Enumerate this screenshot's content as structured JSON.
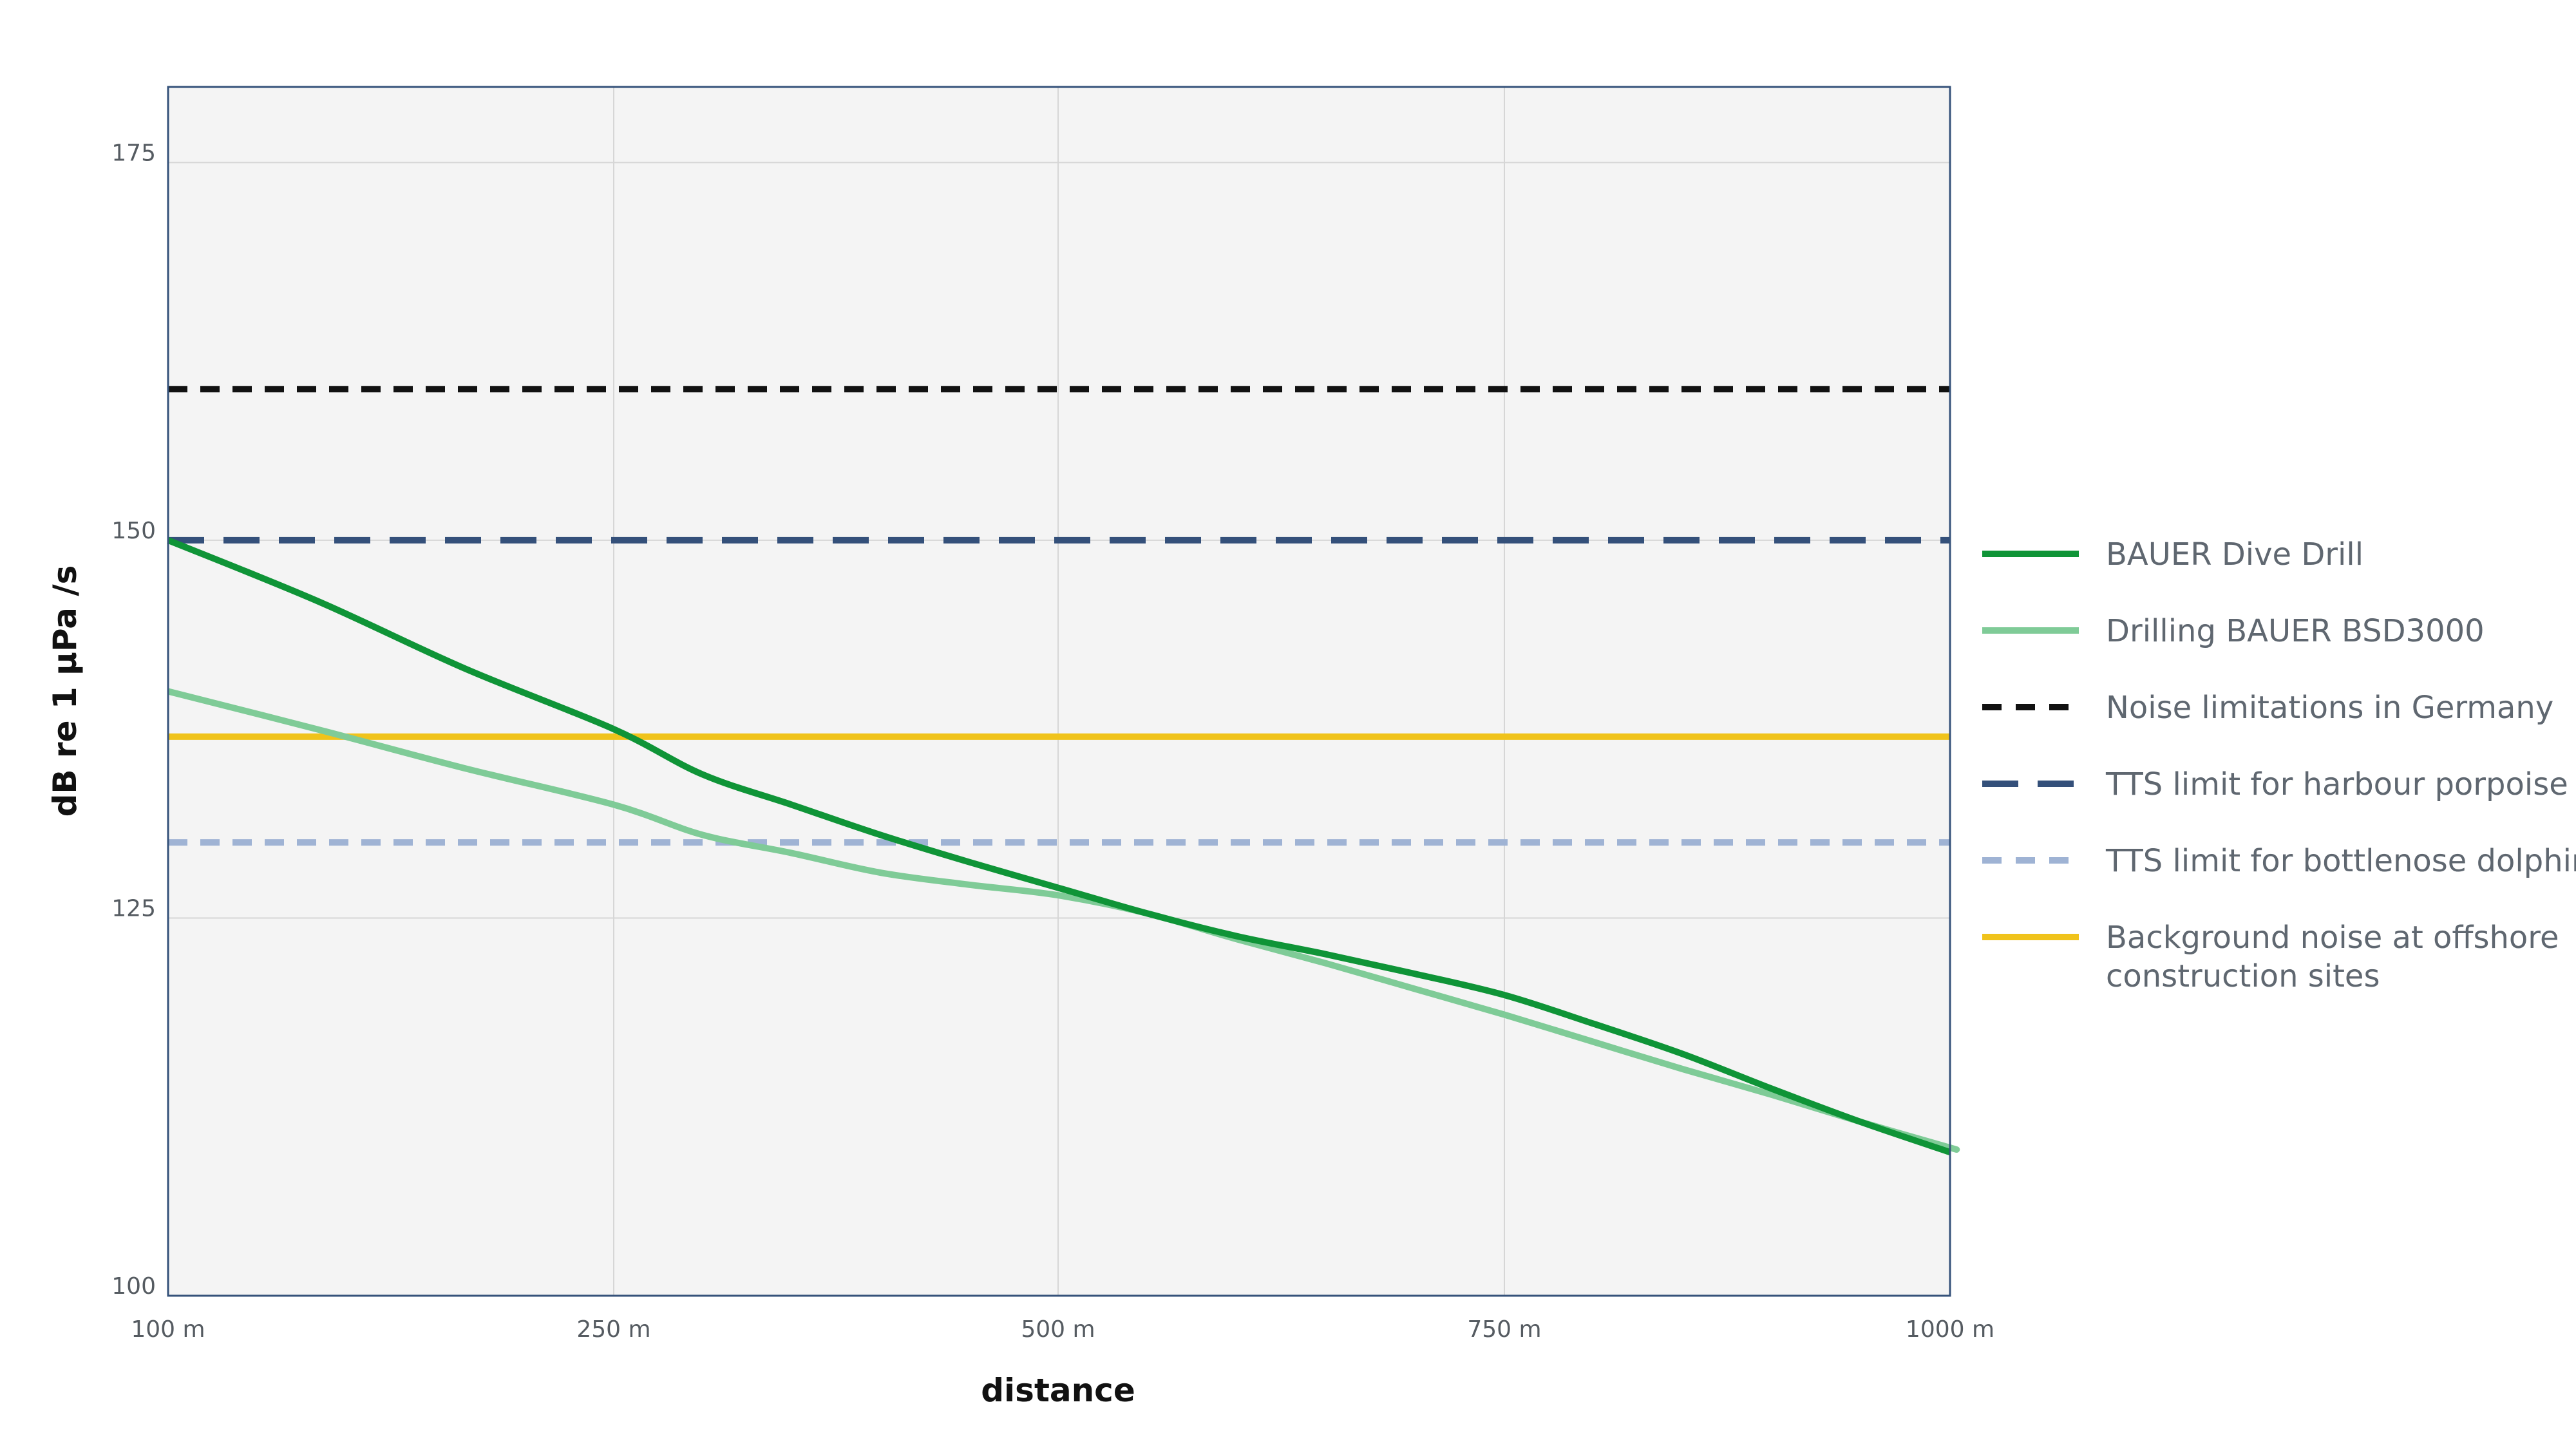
{
  "colors": {
    "plot_background": "#f4f4f4",
    "frame": "#35527a",
    "grid": "#d6d6d6",
    "dive_drill": "#0f9437",
    "bsd3000": "#7fcb97",
    "germany_limit": "#111111",
    "harbour_porpoise": "#34507a",
    "bottlenose_dolphine": "#9fb3d4",
    "background_noise": "#f0c31b"
  },
  "chart_data": {
    "type": "line",
    "title": "",
    "xlabel": "distance",
    "ylabel": "dB re 1 µPa /s",
    "x_ticks": [
      {
        "value": 100,
        "label": "100 m"
      },
      {
        "value": 250,
        "label": "250 m"
      },
      {
        "value": 500,
        "label": "500 m"
      },
      {
        "value": 750,
        "label": "750 m"
      },
      {
        "value": 1000,
        "label": "1000 m"
      }
    ],
    "y_ticks": [
      {
        "value": 100,
        "label": "100"
      },
      {
        "value": 125,
        "label": "125"
      },
      {
        "value": 150,
        "label": "150"
      },
      {
        "value": 175,
        "label": "175"
      }
    ],
    "xlim": [
      100,
      1000
    ],
    "ylim": [
      100,
      180
    ],
    "grid": true,
    "legend_position": "right",
    "series": [
      {
        "name": "BAUER Dive Drill",
        "color_key": "dive_drill",
        "style": "solid",
        "points": [
          [
            100,
            150
          ],
          [
            150,
            146
          ],
          [
            200,
            141.5
          ],
          [
            250,
            137.5
          ],
          [
            300,
            134.5
          ],
          [
            350,
            132.5
          ],
          [
            400,
            130.5
          ],
          [
            450,
            128.7
          ],
          [
            500,
            127
          ],
          [
            550,
            125.3
          ],
          [
            600,
            123.8
          ],
          [
            650,
            122.6
          ],
          [
            700,
            121.3
          ],
          [
            750,
            119.9
          ],
          [
            800,
            118
          ],
          [
            850,
            116
          ],
          [
            900,
            113.7
          ],
          [
            950,
            111.5
          ],
          [
            1000,
            109.5
          ]
        ]
      },
      {
        "name": "Drilling BAUER BSD3000",
        "color_key": "bsd3000",
        "style": "solid",
        "points": [
          [
            100,
            140
          ],
          [
            150,
            137.5
          ],
          [
            200,
            134.9
          ],
          [
            250,
            132.5
          ],
          [
            300,
            130.5
          ],
          [
            350,
            129.3
          ],
          [
            400,
            128
          ],
          [
            450,
            127.2
          ],
          [
            500,
            126.5
          ],
          [
            550,
            125.3
          ],
          [
            600,
            123.6
          ],
          [
            650,
            122
          ],
          [
            700,
            120.3
          ],
          [
            750,
            118.6
          ],
          [
            800,
            116.8
          ],
          [
            850,
            115
          ],
          [
            900,
            113.3
          ],
          [
            950,
            111.5
          ],
          [
            1000,
            109.8
          ],
          [
            1000,
            109.8
          ]
        ]
      },
      {
        "name": "Noise limitations in Germany",
        "color_key": "germany_limit",
        "style": "dash-short",
        "points": [
          [
            100,
            160
          ],
          [
            1000,
            160
          ]
        ]
      },
      {
        "name": "TTS limit for harbour porpoise",
        "color_key": "harbour_porpoise",
        "style": "dash-long",
        "points": [
          [
            100,
            150
          ],
          [
            1000,
            150
          ]
        ]
      },
      {
        "name": "TTS limit for bottlenose dolphine",
        "color_key": "bottlenose_dolphine",
        "style": "dash-short",
        "points": [
          [
            100,
            130
          ],
          [
            1000,
            130
          ]
        ]
      },
      {
        "name": "Background noise at offshore construction sites",
        "legend_lines": [
          "Background noise at offshore",
          "construction sites"
        ],
        "color_key": "background_noise",
        "style": "solid",
        "points": [
          [
            100,
            137
          ],
          [
            1000,
            137
          ]
        ]
      }
    ]
  }
}
